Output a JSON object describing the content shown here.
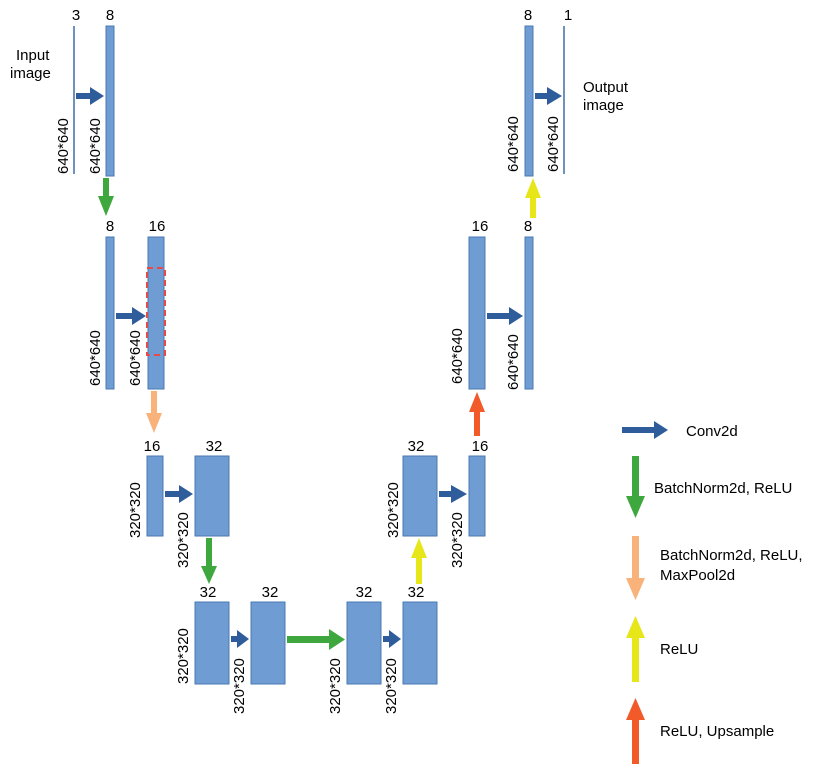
{
  "colors": {
    "block": "#6f9dd3",
    "conv": "#2f5c9a",
    "bn_relu": "#3ea83e",
    "bn_relu_pool": "#f9b27a",
    "relu": "#e6e619",
    "relu_upsample": "#f25a2a",
    "dashed_box": "#e84a4a"
  },
  "labels": {
    "input": [
      "Input",
      "image"
    ],
    "output": [
      "Output",
      "image"
    ],
    "ch_3": "3",
    "ch_1": "1",
    "ch_8": "8",
    "ch_16": "16",
    "ch_32": "32",
    "size_640": "640*640",
    "size_320": "320*320"
  },
  "legend": {
    "conv": "Conv2d",
    "bn_relu": "BatchNorm2d, ReLU",
    "bn_relu_pool": [
      "BatchNorm2d, ReLU,",
      "MaxPool2d"
    ],
    "relu": "ReLU",
    "relu_upsample": "ReLU, Upsample"
  }
}
